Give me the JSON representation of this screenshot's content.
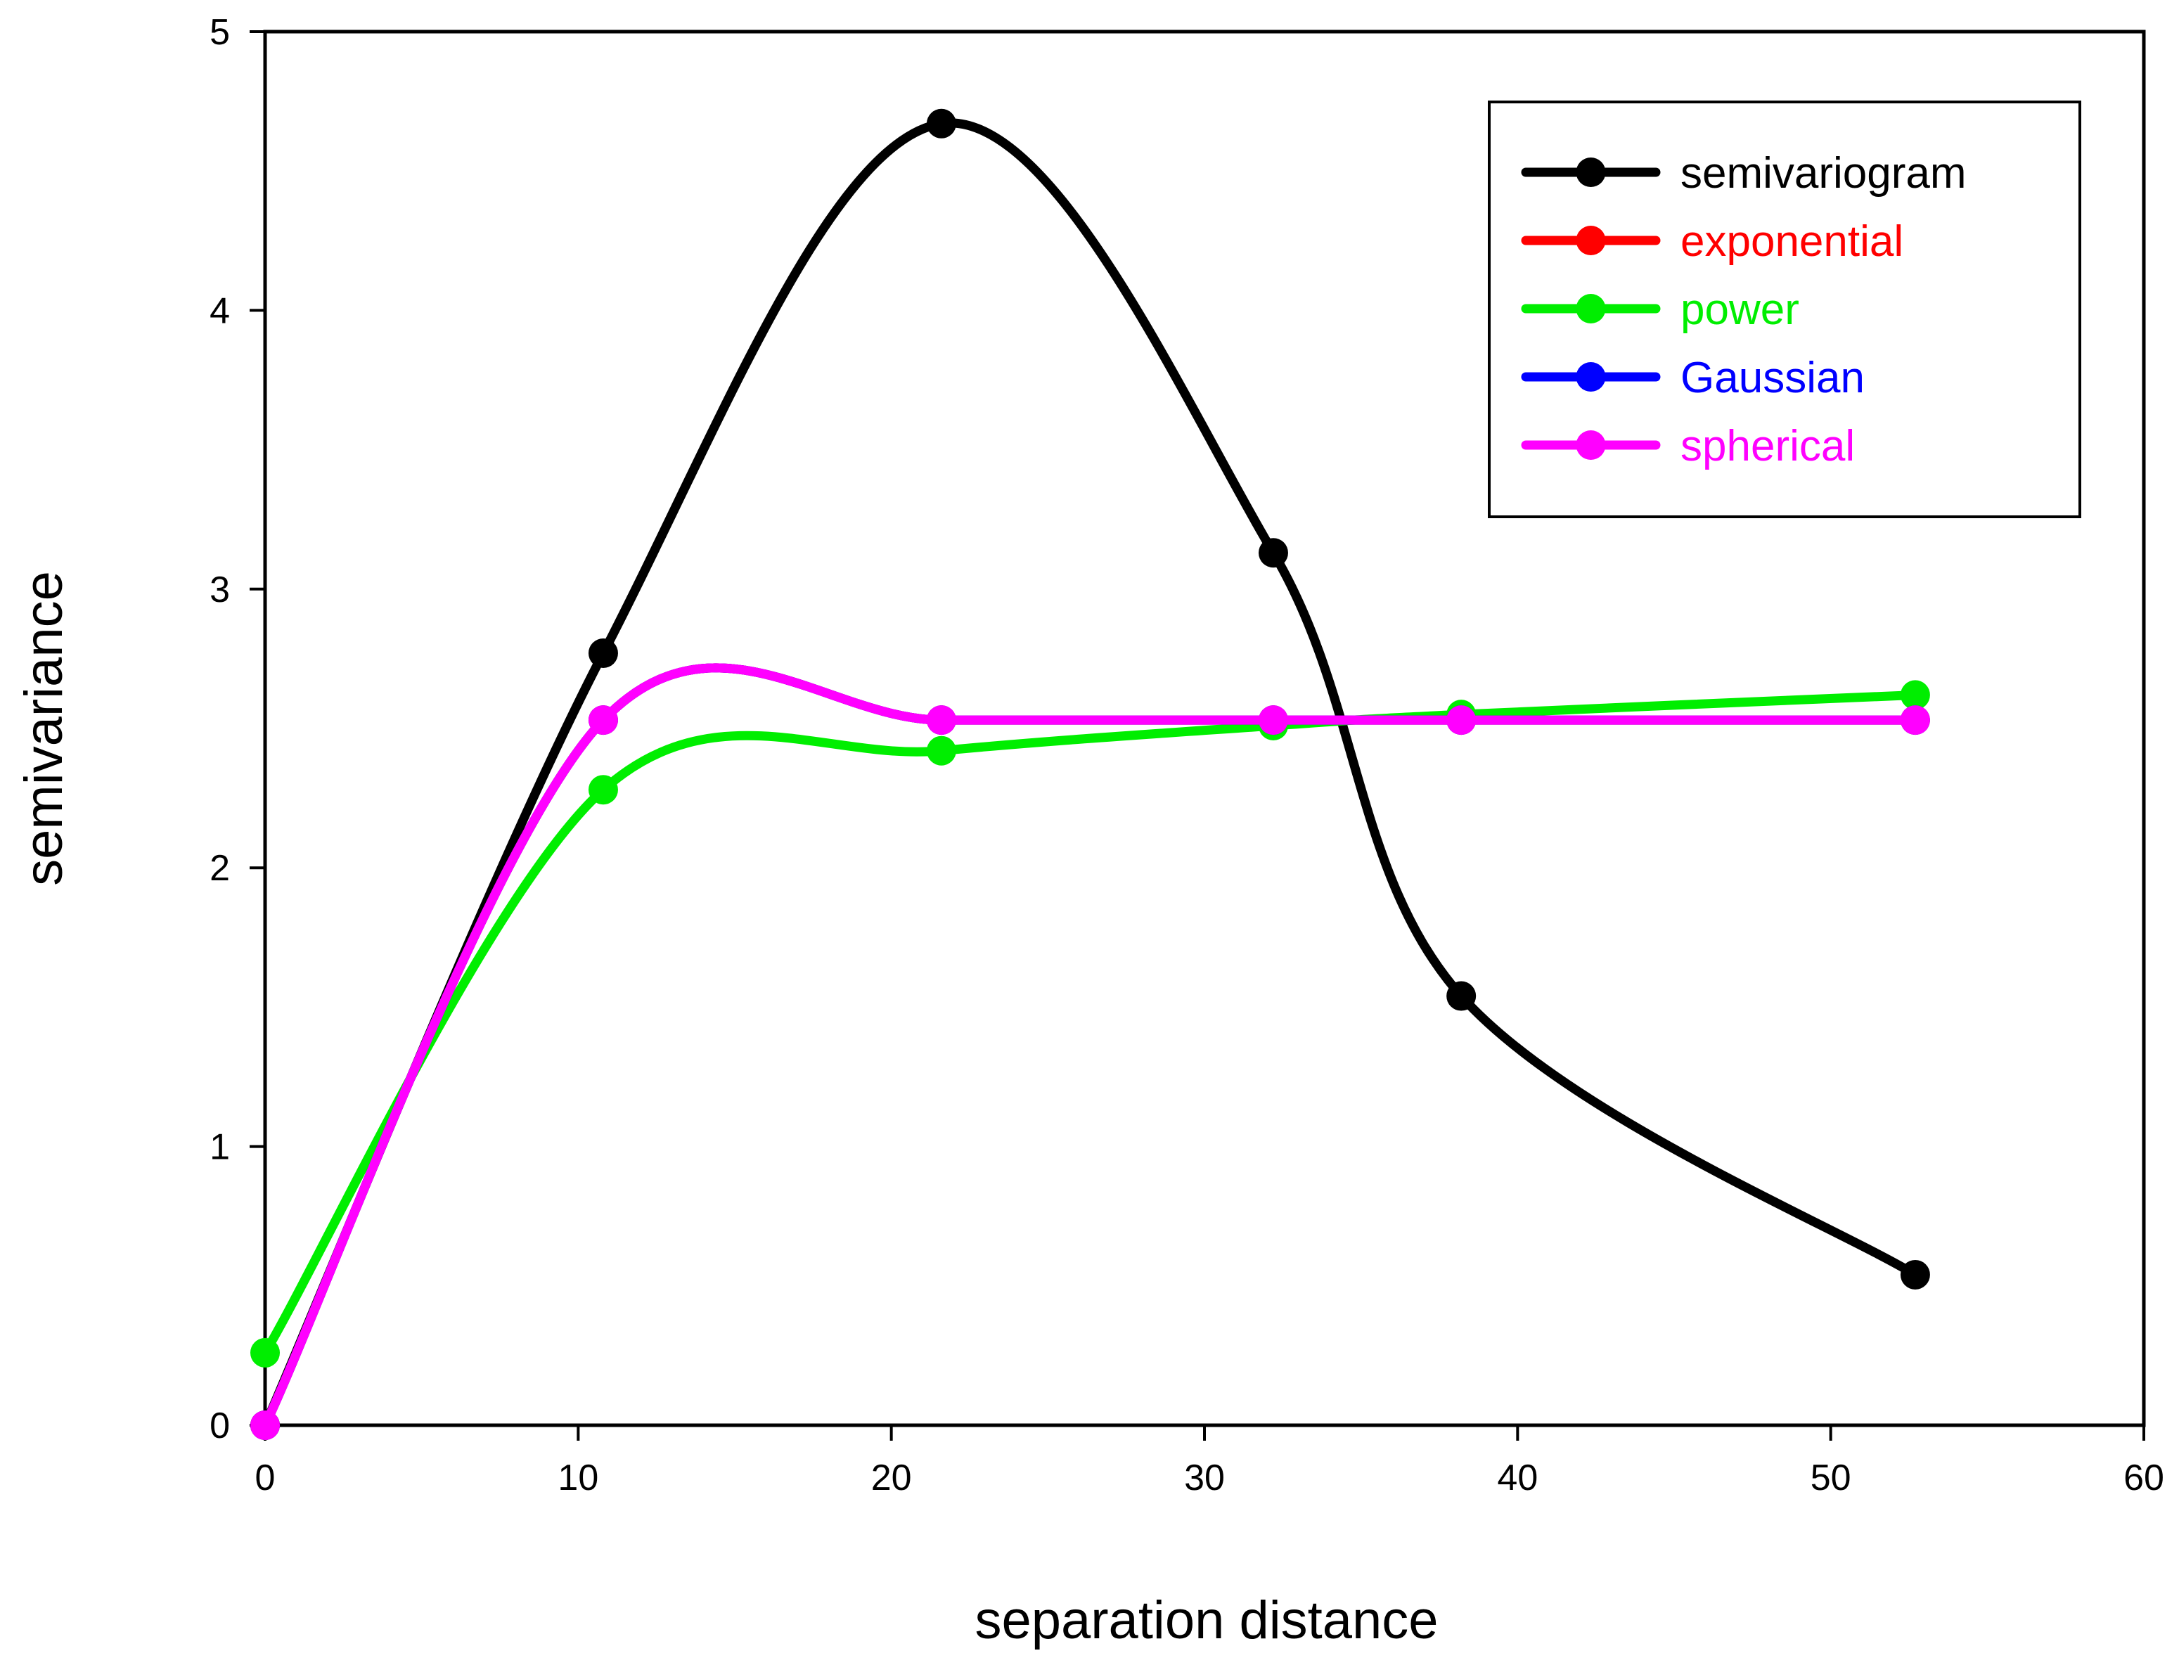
{
  "chart_data": {
    "type": "line",
    "title": "",
    "xlabel": "separation distance",
    "ylabel": "semivariance",
    "xlim": [
      0,
      60
    ],
    "ylim": [
      0,
      5
    ],
    "xticks": [
      "0",
      "10",
      "20",
      "30",
      "40",
      "50",
      "60"
    ],
    "yticks": [
      "0",
      "1",
      "2",
      "3",
      "4",
      "5"
    ],
    "grid": false,
    "legend_position": "top-right",
    "series": [
      {
        "name": "semivariogram",
        "color": "#000000",
        "x": [
          0,
          10.8,
          21.6,
          32.2,
          38.2,
          52.7
        ],
        "y": [
          0,
          2.77,
          4.67,
          3.13,
          1.54,
          0.54
        ]
      },
      {
        "name": "exponential",
        "color": "#ff0000",
        "x": [
          0,
          10.8,
          21.6,
          32.2,
          38.2,
          52.7
        ],
        "y": [
          0,
          2.53,
          2.53,
          2.53,
          2.53,
          2.53
        ]
      },
      {
        "name": "power",
        "color": "#00ee00",
        "x": [
          0,
          10.8,
          21.6,
          32.2,
          38.2,
          52.7
        ],
        "y": [
          0.26,
          2.28,
          2.42,
          2.51,
          2.55,
          2.62
        ]
      },
      {
        "name": "Gaussian",
        "color": "#0000ff",
        "x": [
          0,
          10.8,
          21.6,
          32.2,
          38.2,
          52.7
        ],
        "y": [
          0,
          2.53,
          2.53,
          2.53,
          2.53,
          2.53
        ]
      },
      {
        "name": "spherical",
        "color": "#ff00ff",
        "x": [
          0,
          10.8,
          21.6,
          32.2,
          38.2,
          52.7
        ],
        "y": [
          0,
          2.53,
          2.53,
          2.53,
          2.53,
          2.53
        ]
      }
    ]
  }
}
